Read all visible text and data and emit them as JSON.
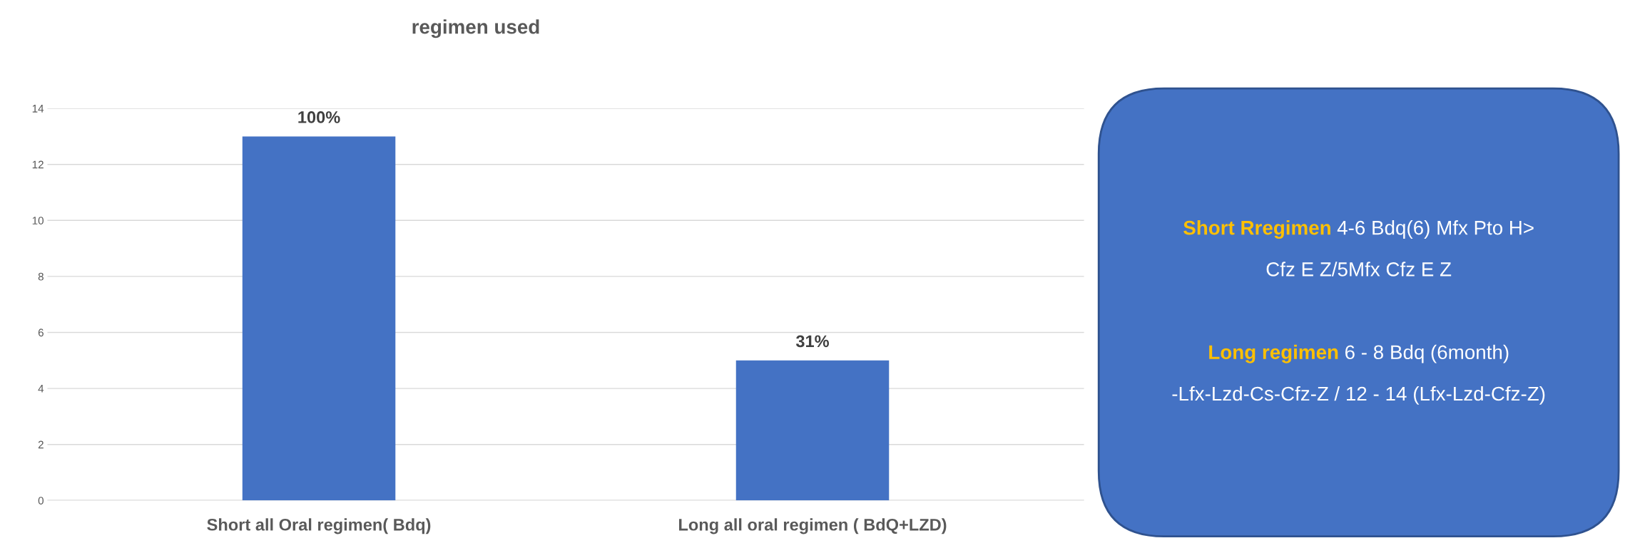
{
  "chart_data": {
    "type": "bar",
    "title": "regimen used",
    "categories": [
      "Short all Oral regimen( Bdq)",
      "Long all oral regimen ( BdQ+LZD)"
    ],
    "series": [
      {
        "color": "#4472c4",
        "values": [
          13,
          5
        ]
      }
    ],
    "ylim": [
      0,
      14
    ],
    "yticks": [
      0,
      2,
      4,
      6,
      8,
      10,
      12,
      14
    ],
    "grid": "y",
    "legend": false,
    "annotations": [
      {
        "text": "100%",
        "x": "Short all Oral regimen( Bdq)",
        "y": 13
      },
      {
        "text": "31%",
        "x": "Long all oral regimen ( BdQ+LZD)",
        "y": 5
      },
      "Short Rregimen",
      "4-6 Bdq(6) Mfx Pto H> Cfz E Z/5Mfx Cfz E Z",
      "Long regimen",
      "6 - 8 Bdq (6month) -Lfx-Lzd-Cs-Cfz-Z / 12 - 14 (Lfx-Lzd-Cfz-Z)"
    ]
  }
}
